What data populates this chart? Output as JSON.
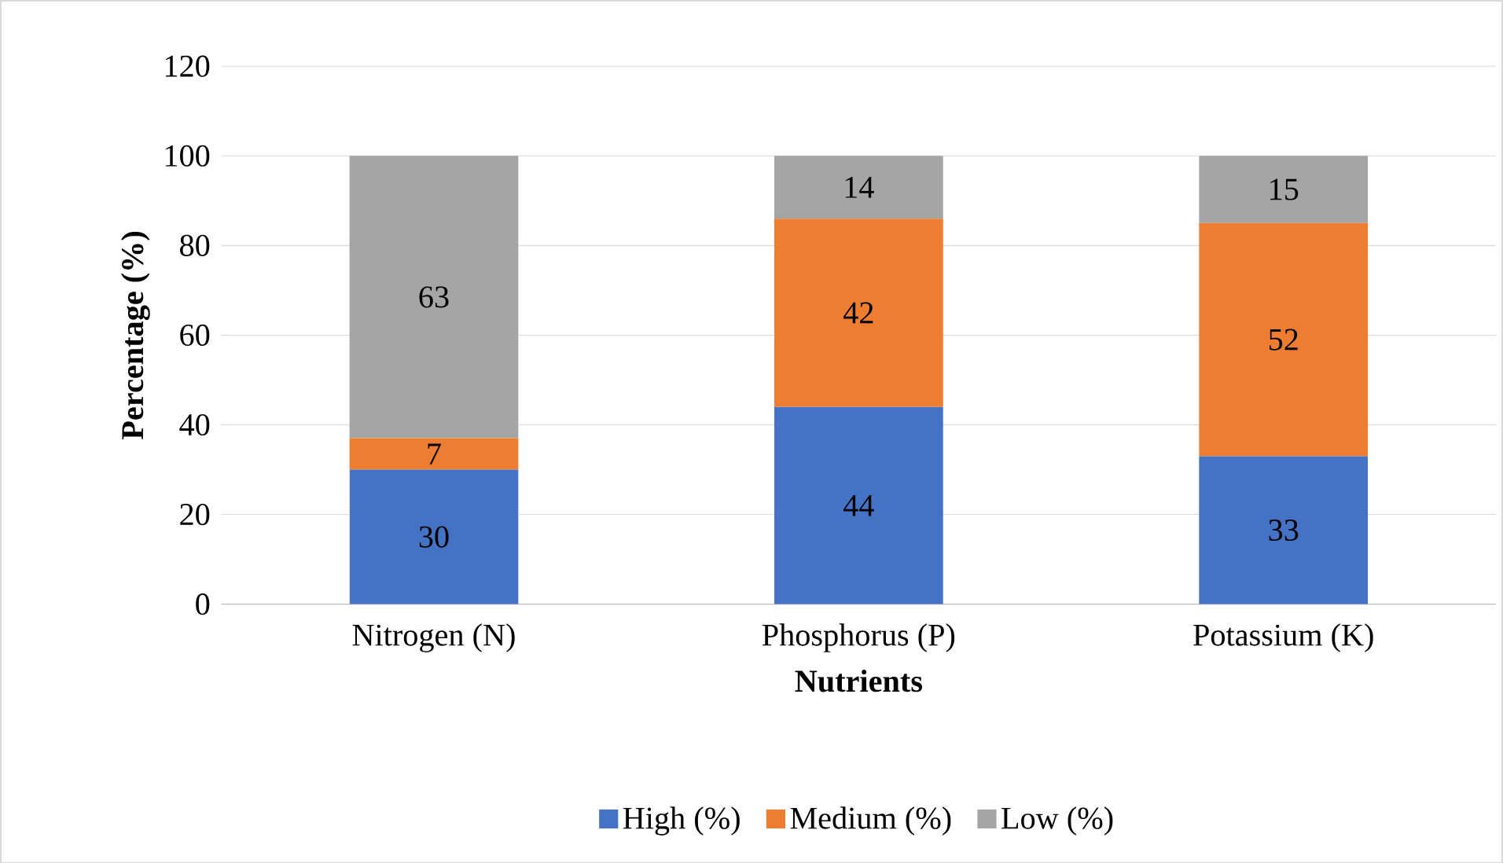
{
  "chart_data": {
    "type": "bar",
    "stacked": true,
    "xlabel": "Nutrients",
    "ylabel": "Percentage (%)",
    "categories": [
      "Nitrogen (N)",
      "Phosphorus (P)",
      "Potassium (K)"
    ],
    "series": [
      {
        "name": "High (%)",
        "color": "#4472c4",
        "values": [
          30,
          44,
          33
        ]
      },
      {
        "name": "Medium (%)",
        "color": "#ed7d31",
        "values": [
          7,
          42,
          52
        ]
      },
      {
        "name": "Low (%)",
        "color": "#a5a5a5",
        "values": [
          63,
          14,
          15
        ]
      }
    ],
    "ylim": [
      0,
      120
    ],
    "yticks": [
      0,
      20,
      40,
      60,
      80,
      100,
      120
    ],
    "grid": "y",
    "legend": "bottom",
    "data_labels": true
  }
}
